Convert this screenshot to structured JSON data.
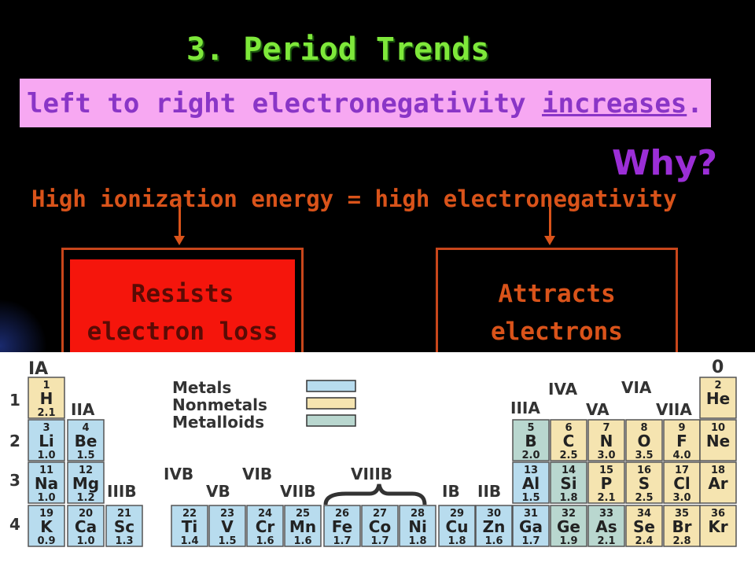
{
  "slide": {
    "title": "3. Period Trends",
    "banner_text": "left to right electronegativity ",
    "banner_emphasis": "increases",
    "banner_end": ".",
    "why": "Why?",
    "statement": "High ionization energy = high electronegativity",
    "box_left": {
      "line1": "Resists",
      "line2": "electron loss"
    },
    "box_right": {
      "line1": "Attracts",
      "line2": "electrons"
    }
  },
  "periodic_table": {
    "groups": {
      "IA": "IA",
      "IIA": "IIA",
      "IIIB": "IIIB",
      "IVB": "IVB",
      "VB": "VB",
      "VIB": "VIB",
      "VIIB": "VIIB",
      "VIIIB": "VIIIB",
      "IB": "IB",
      "IIB": "IIB",
      "IIIA": "IIIA",
      "IVA": "IVA",
      "VA": "VA",
      "VIA": "VIA",
      "VIIA": "VIIA",
      "zero": "0"
    },
    "periods": [
      "1",
      "2",
      "3",
      "4"
    ],
    "legend": [
      {
        "label": "Metals",
        "color": "#b8dcee"
      },
      {
        "label": "Nonmetals",
        "color": "#f5e4b0"
      },
      {
        "label": "Metalloids",
        "color": "#b9d7cf"
      }
    ],
    "colors": {
      "metal": "#b8dcee",
      "nonmetal": "#f5e4b0",
      "metalloid": "#b9d7cf"
    },
    "elements": [
      {
        "z": "1",
        "sym": "H",
        "en": "2.1",
        "type": "nonmetal"
      },
      {
        "z": "2",
        "sym": "He",
        "en": "",
        "type": "nonmetal"
      },
      {
        "z": "3",
        "sym": "Li",
        "en": "1.0",
        "type": "metal"
      },
      {
        "z": "4",
        "sym": "Be",
        "en": "1.5",
        "type": "metal"
      },
      {
        "z": "5",
        "sym": "B",
        "en": "2.0",
        "type": "metalloid"
      },
      {
        "z": "6",
        "sym": "C",
        "en": "2.5",
        "type": "nonmetal"
      },
      {
        "z": "7",
        "sym": "N",
        "en": "3.0",
        "type": "nonmetal"
      },
      {
        "z": "8",
        "sym": "O",
        "en": "3.5",
        "type": "nonmetal"
      },
      {
        "z": "9",
        "sym": "F",
        "en": "4.0",
        "type": "nonmetal"
      },
      {
        "z": "10",
        "sym": "Ne",
        "en": "",
        "type": "nonmetal"
      },
      {
        "z": "11",
        "sym": "Na",
        "en": "1.0",
        "type": "metal"
      },
      {
        "z": "12",
        "sym": "Mg",
        "en": "1.2",
        "type": "metal"
      },
      {
        "z": "13",
        "sym": "Al",
        "en": "1.5",
        "type": "metal"
      },
      {
        "z": "14",
        "sym": "Si",
        "en": "1.8",
        "type": "metalloid"
      },
      {
        "z": "15",
        "sym": "P",
        "en": "2.1",
        "type": "nonmetal"
      },
      {
        "z": "16",
        "sym": "S",
        "en": "2.5",
        "type": "nonmetal"
      },
      {
        "z": "17",
        "sym": "Cl",
        "en": "3.0",
        "type": "nonmetal"
      },
      {
        "z": "18",
        "sym": "Ar",
        "en": "",
        "type": "nonmetal"
      },
      {
        "z": "19",
        "sym": "K",
        "en": "0.9",
        "type": "metal"
      },
      {
        "z": "20",
        "sym": "Ca",
        "en": "1.0",
        "type": "metal"
      },
      {
        "z": "21",
        "sym": "Sc",
        "en": "1.3",
        "type": "metal"
      },
      {
        "z": "22",
        "sym": "Ti",
        "en": "1.4",
        "type": "metal"
      },
      {
        "z": "23",
        "sym": "V",
        "en": "1.5",
        "type": "metal"
      },
      {
        "z": "24",
        "sym": "Cr",
        "en": "1.6",
        "type": "metal"
      },
      {
        "z": "25",
        "sym": "Mn",
        "en": "1.6",
        "type": "metal"
      },
      {
        "z": "26",
        "sym": "Fe",
        "en": "1.7",
        "type": "metal"
      },
      {
        "z": "27",
        "sym": "Co",
        "en": "1.7",
        "type": "metal"
      },
      {
        "z": "28",
        "sym": "Ni",
        "en": "1.8",
        "type": "metal"
      },
      {
        "z": "29",
        "sym": "Cu",
        "en": "1.8",
        "type": "metal"
      },
      {
        "z": "30",
        "sym": "Zn",
        "en": "1.6",
        "type": "metal"
      },
      {
        "z": "31",
        "sym": "Ga",
        "en": "1.7",
        "type": "metal"
      },
      {
        "z": "32",
        "sym": "Ge",
        "en": "1.9",
        "type": "metalloid"
      },
      {
        "z": "33",
        "sym": "As",
        "en": "2.1",
        "type": "metalloid"
      },
      {
        "z": "34",
        "sym": "Se",
        "en": "2.4",
        "type": "nonmetal"
      },
      {
        "z": "35",
        "sym": "Br",
        "en": "2.8",
        "type": "nonmetal"
      },
      {
        "z": "36",
        "sym": "Kr",
        "en": "",
        "type": "nonmetal"
      }
    ]
  }
}
